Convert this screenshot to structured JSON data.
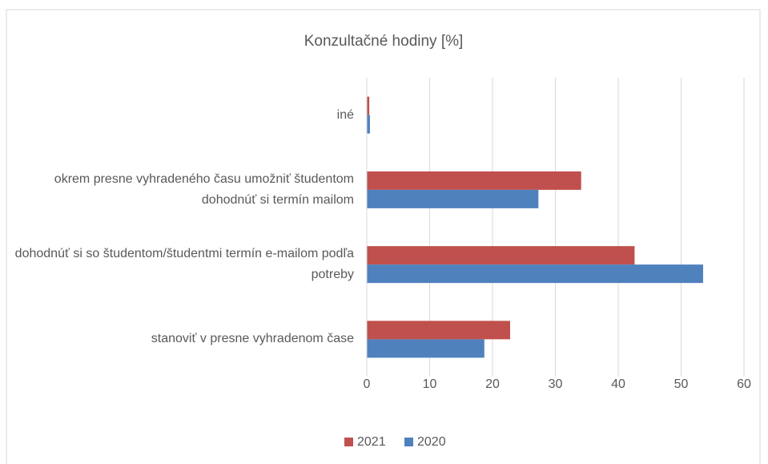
{
  "chart_data": {
    "type": "barh",
    "title": "Konzultačné hodiny [%]",
    "categories": [
      "iné",
      "okrem presne vyhradeného času umožniť študentom dohodnúť si termín mailom",
      "dohodnúť si so študentom/študentmi termín e-mailom podľa potreby",
      "stanoviť v presne vyhradenom čase"
    ],
    "series": [
      {
        "name": "2021",
        "color": "#c0504d",
        "values": [
          0.4,
          34.1,
          42.6,
          22.8
        ]
      },
      {
        "name": "2020",
        "color": "#4f81bd",
        "values": [
          0.5,
          27.3,
          53.5,
          18.7
        ]
      }
    ],
    "xlim": [
      0,
      60
    ],
    "xticks": [
      0,
      10,
      20,
      30,
      40,
      50,
      60
    ],
    "grid": true,
    "legend": "bottom"
  }
}
